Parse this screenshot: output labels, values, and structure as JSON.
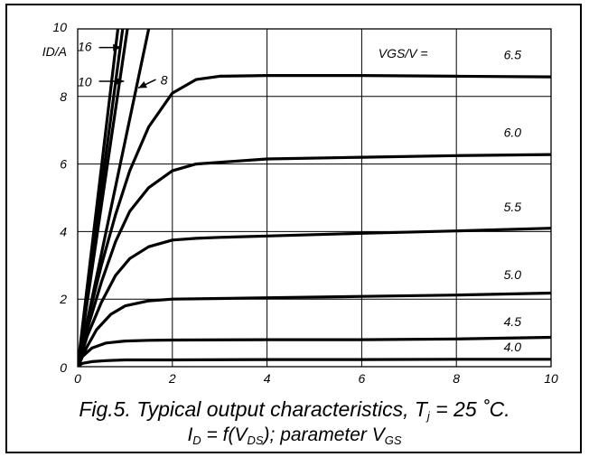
{
  "caption": {
    "line1_prefix": "Fig.5.  Typical output characteristics, T",
    "line1_sub": "j",
    "line1_suffix": " = 25 ˚C.",
    "line2_i": "I",
    "line2_i_sub": "D",
    "line2_mid": " = f(V",
    "line2_mid_sub": "DS",
    "line2_close": "); parameter V",
    "line2_end_sub": "GS"
  },
  "chart_data": {
    "type": "line",
    "title": "",
    "xlabel": "",
    "ylabel": "ID/A",
    "legend_title": "VGS/V =",
    "xlim": [
      0,
      10
    ],
    "ylim": [
      0,
      10
    ],
    "xticks": [
      "0",
      "2",
      "4",
      "6",
      "8",
      "10"
    ],
    "yticks": [
      "0",
      "2",
      "4",
      "6",
      "8",
      "10"
    ],
    "grid": true,
    "series": [
      {
        "name": "4.0",
        "x": [
          0,
          0.1,
          0.3,
          0.6,
          1,
          2,
          4,
          6,
          8,
          10
        ],
        "y": [
          0,
          0.1,
          0.15,
          0.18,
          0.2,
          0.2,
          0.21,
          0.21,
          0.22,
          0.22
        ]
      },
      {
        "name": "4.5",
        "x": [
          0,
          0.1,
          0.3,
          0.6,
          1,
          1.5,
          2,
          4,
          6,
          8,
          10
        ],
        "y": [
          0,
          0.3,
          0.55,
          0.7,
          0.76,
          0.78,
          0.79,
          0.8,
          0.8,
          0.82,
          0.87
        ]
      },
      {
        "name": "5.0",
        "x": [
          0,
          0.2,
          0.4,
          0.7,
          1,
          1.5,
          2,
          3,
          4,
          6,
          8,
          10
        ],
        "y": [
          0,
          0.6,
          1.1,
          1.55,
          1.8,
          1.95,
          2.0,
          2.02,
          2.04,
          2.08,
          2.12,
          2.18
        ]
      },
      {
        "name": "5.5",
        "x": [
          0,
          0.2,
          0.5,
          0.8,
          1.1,
          1.5,
          2,
          2.5,
          3,
          4,
          6,
          8,
          10
        ],
        "y": [
          0,
          0.9,
          1.9,
          2.7,
          3.2,
          3.55,
          3.75,
          3.8,
          3.83,
          3.87,
          3.95,
          4.02,
          4.1
        ]
      },
      {
        "name": "6.0",
        "x": [
          0,
          0.2,
          0.5,
          0.8,
          1.1,
          1.5,
          2,
          2.5,
          3,
          4,
          6,
          8,
          10
        ],
        "y": [
          0,
          1.1,
          2.5,
          3.7,
          4.6,
          5.3,
          5.8,
          6.0,
          6.05,
          6.15,
          6.2,
          6.25,
          6.28
        ]
      },
      {
        "name": "6.5",
        "x": [
          0,
          0.2,
          0.5,
          0.8,
          1.1,
          1.5,
          2,
          2.5,
          3,
          4,
          6,
          8,
          10
        ],
        "y": [
          0,
          1.3,
          3.0,
          4.5,
          5.8,
          7.1,
          8.1,
          8.5,
          8.6,
          8.62,
          8.62,
          8.6,
          8.58
        ]
      },
      {
        "name": "8",
        "x": [
          0,
          1.5
        ],
        "y": [
          0,
          10
        ]
      },
      {
        "name": "10",
        "x": [
          0,
          1.05
        ],
        "y": [
          0,
          10
        ]
      },
      {
        "name": "16",
        "x": [
          0,
          0.95
        ],
        "y": [
          0,
          10
        ]
      },
      {
        "name": "",
        "x": [
          0,
          0.85
        ],
        "y": [
          0,
          10
        ]
      }
    ],
    "curve_labels": [
      {
        "text": "6.5",
        "x": 9.0,
        "y": 9.1
      },
      {
        "text": "6.0",
        "x": 9.0,
        "y": 6.8
      },
      {
        "text": "5.5",
        "x": 9.0,
        "y": 4.6
      },
      {
        "text": "5.0",
        "x": 9.0,
        "y": 2.6
      },
      {
        "text": "4.5",
        "x": 9.0,
        "y": 1.2
      },
      {
        "text": "4.0",
        "x": 9.0,
        "y": 0.45
      },
      {
        "text": "16",
        "x": 0.0,
        "y": 9.35
      },
      {
        "text": "10",
        "x": 0.0,
        "y": 8.3
      },
      {
        "text": "8",
        "x": 1.75,
        "y": 8.35
      }
    ],
    "legend_pos": {
      "x": 6.35,
      "y": 9.15
    }
  }
}
